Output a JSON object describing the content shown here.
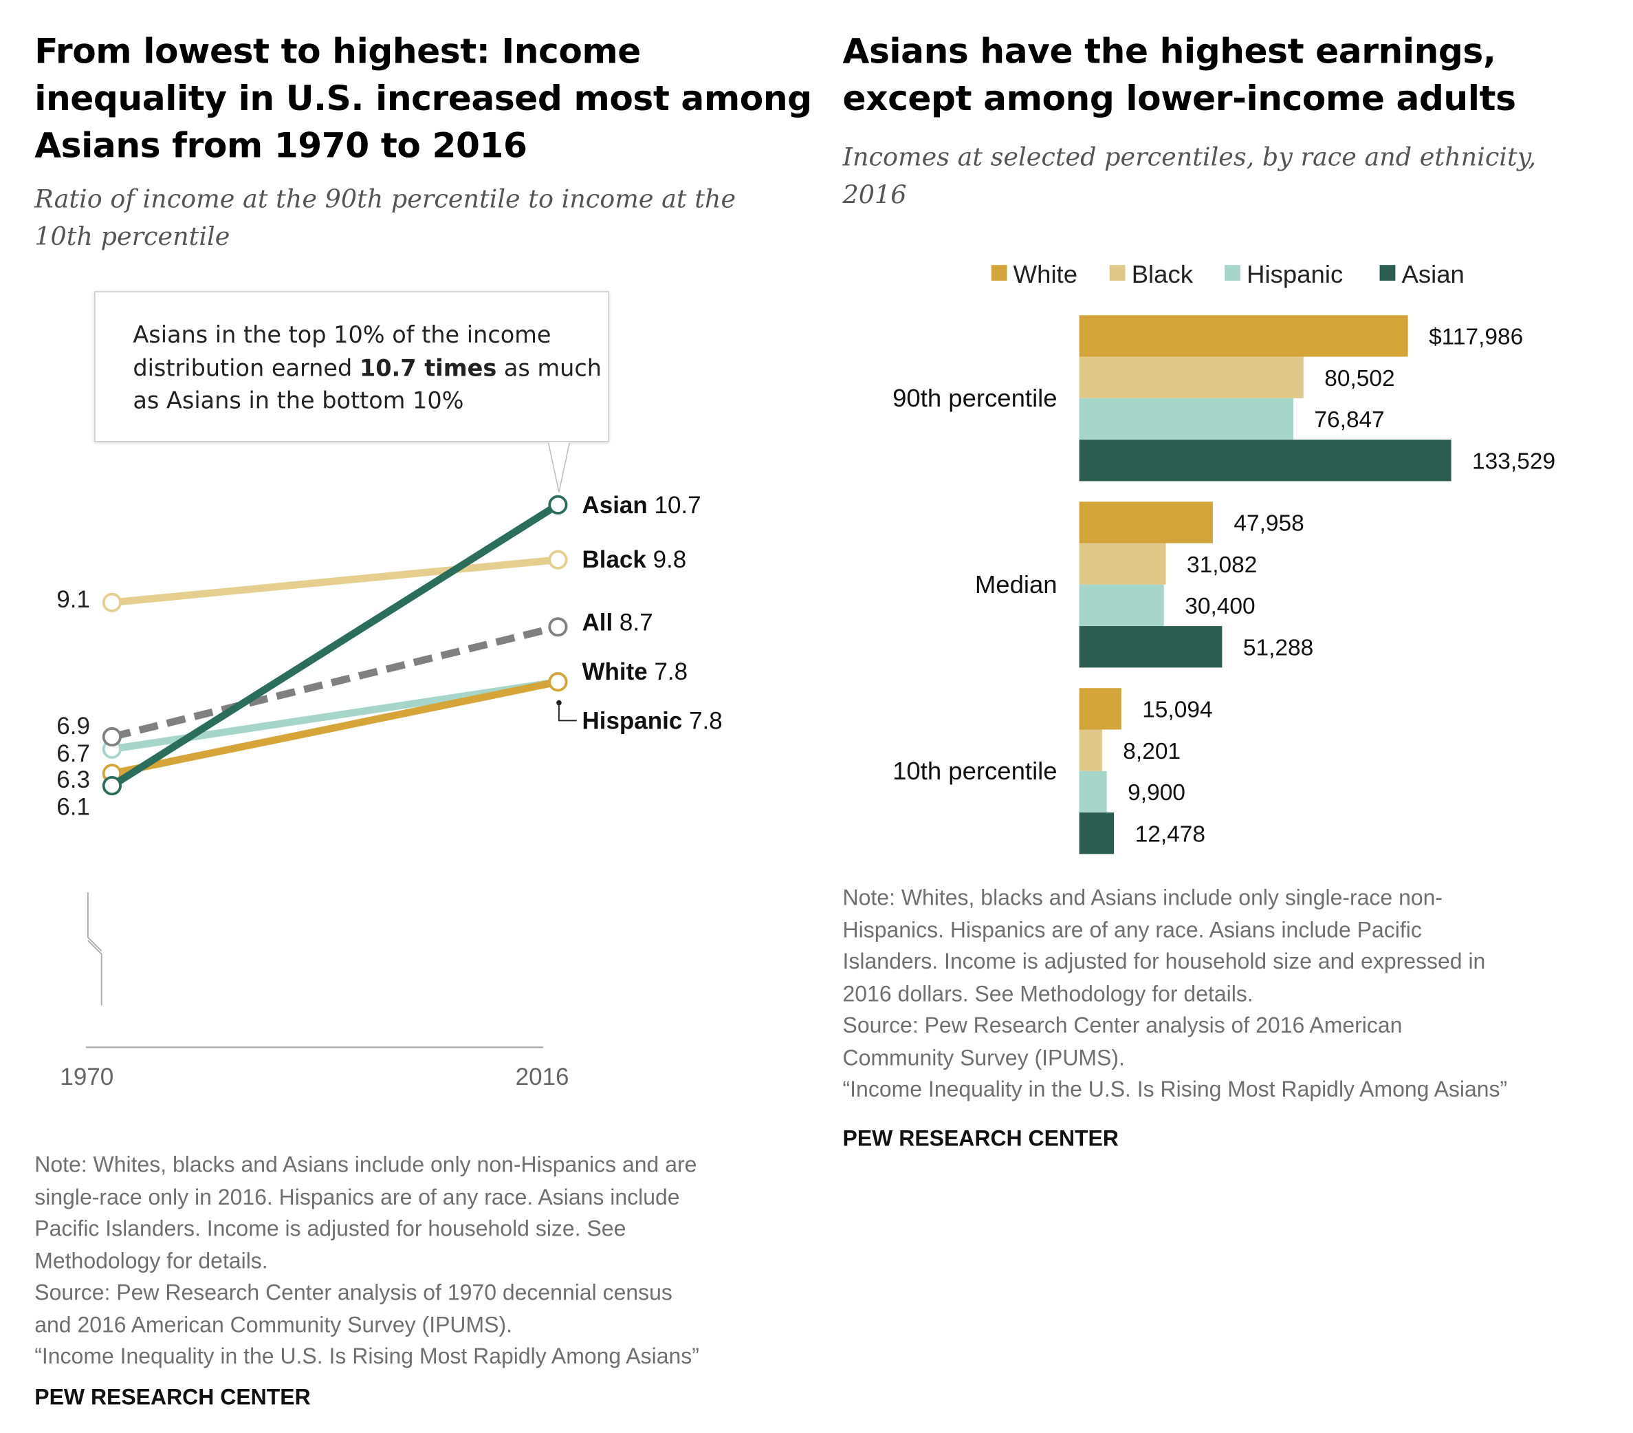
{
  "left": {
    "title": [
      "From lowest to highest: Income",
      "inequality in U.S. increased most among",
      "Asians from 1970 to 2016"
    ],
    "subtitle": [
      "Ratio of income at the 90th percentile to income at the",
      "10th percentile"
    ],
    "callout": {
      "pre": "Asians in the top 10% of the income distribution earned ",
      "bold": "10.7 times",
      "post": " as much as Asians in the bottom 10%"
    },
    "notes": [
      "Note: Whites, blacks and Asians include only non-Hispanics and are",
      "single-race only in 2016. Hispanics are of any race. Asians include",
      "Pacific Islanders. Income is adjusted for household size. See",
      "Methodology for details.",
      "Source: Pew Research Center analysis of 1970 decennial census",
      "and 2016 American Community Survey (IPUMS).",
      "“Income Inequality in the U.S. Is Rising Most Rapidly Among Asians”"
    ],
    "brand": "PEW RESEARCH CENTER"
  },
  "right": {
    "title": [
      "Asians have the highest earnings,",
      "except among lower-income adults"
    ],
    "subtitle": [
      "Incomes at selected percentiles, by race and ethnicity,",
      "2016"
    ],
    "notes": [
      "Note: Whites, blacks and Asians include only single-race non-",
      "Hispanics. Hispanics are of any race. Asians include Pacific",
      "Islanders. Income is adjusted for household size and expressed in",
      "2016 dollars. See Methodology for details.",
      "Source: Pew Research Center analysis of 2016 American",
      "Community Survey (IPUMS).",
      "“Income Inequality in the U.S. Is Rising Most Rapidly Among Asians”"
    ],
    "brand": "PEW RESEARCH CENTER"
  },
  "chart_data": [
    {
      "type": "line",
      "x": [
        "1970",
        "2016"
      ],
      "series": [
        {
          "name": "Asian",
          "values": [
            6.1,
            10.7
          ],
          "color": "#2b6e5c",
          "style": "solid"
        },
        {
          "name": "Black",
          "values": [
            9.1,
            9.8
          ],
          "color": "#e6cf8e",
          "style": "solid"
        },
        {
          "name": "All",
          "values": [
            6.9,
            8.7
          ],
          "color": "#808080",
          "style": "dashed"
        },
        {
          "name": "White",
          "values": [
            6.3,
            7.8
          ],
          "color": "#d6a53a",
          "style": "solid"
        },
        {
          "name": "Hispanic",
          "values": [
            6.7,
            7.8
          ],
          "color": "#a5d6c9",
          "style": "solid"
        }
      ],
      "start_labels": [
        "9.1",
        "6.9",
        "6.7",
        "6.3",
        "6.1"
      ],
      "end_labels": [
        {
          "name": "Asian",
          "value": "10.7"
        },
        {
          "name": "Black",
          "value": "9.8"
        },
        {
          "name": "All",
          "value": "8.7"
        },
        {
          "name": "White",
          "value": "7.8"
        },
        {
          "name": "Hispanic",
          "value": "7.8"
        }
      ],
      "axis_break": true,
      "grid": false
    },
    {
      "type": "bar",
      "orientation": "horizontal",
      "categories": [
        "90th percentile",
        "Median",
        "10th percentile"
      ],
      "series": [
        {
          "name": "White",
          "color": "#d3a43a",
          "values": [
            117986,
            47958,
            15094
          ],
          "labels": [
            "$117,986",
            "47,958",
            "15,094"
          ]
        },
        {
          "name": "Black",
          "color": "#e0c88a",
          "values": [
            80502,
            31082,
            8201
          ],
          "labels": [
            "80,502",
            "31,082",
            "8,201"
          ]
        },
        {
          "name": "Hispanic",
          "color": "#a5d6c9",
          "values": [
            76847,
            30400,
            9900
          ],
          "labels": [
            "76,847",
            "30,400",
            "9,900"
          ]
        },
        {
          "name": "Asian",
          "color": "#2b5e50",
          "values": [
            133529,
            51288,
            12478
          ],
          "labels": [
            "133,529",
            "51,288",
            "12,478"
          ]
        }
      ],
      "legend": "top",
      "grid": false
    }
  ]
}
